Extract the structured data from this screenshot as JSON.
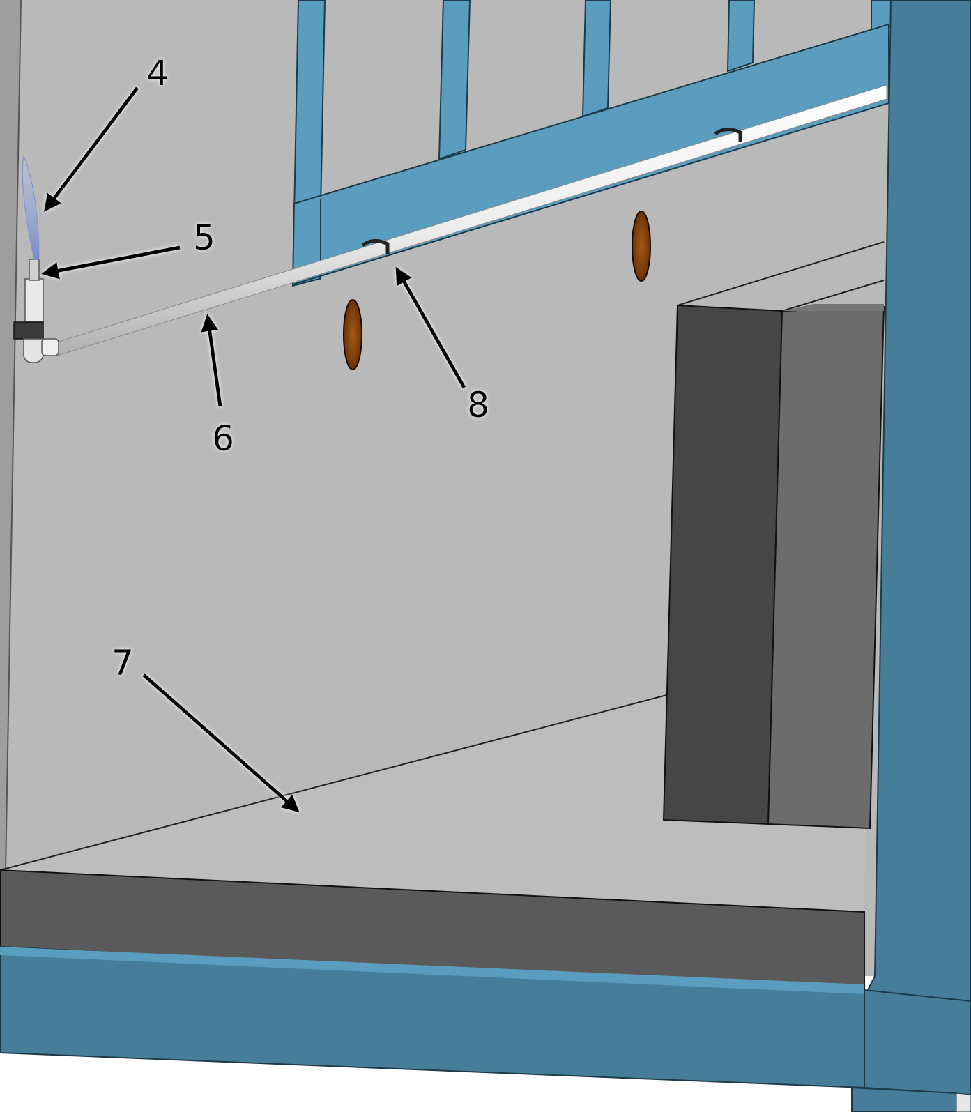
{
  "colors": {
    "frame_blue": "#5b9dbe",
    "frame_blue_dark": "#467d99",
    "wall_gray": "#b8b8b8",
    "floor_gray": "#bdbdbd",
    "base_dark": "#5a5a5a",
    "block_dark": "#464646",
    "block_mid": "#6c6c6c",
    "hole_brown": "#8a4a12",
    "pipe_white": "#f4f4f4",
    "spray_blue": "#8fa6d8"
  },
  "callouts": [
    {
      "id": "callout-4",
      "label": "4"
    },
    {
      "id": "callout-5",
      "label": "5"
    },
    {
      "id": "callout-6",
      "label": "6"
    },
    {
      "id": "callout-7",
      "label": "7"
    },
    {
      "id": "callout-8",
      "label": "8"
    }
  ]
}
